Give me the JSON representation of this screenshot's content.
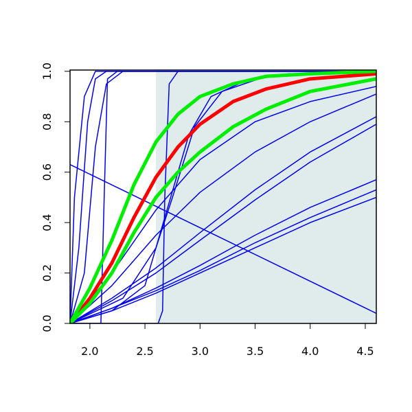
{
  "chart_data": {
    "type": "line",
    "xlim": [
      1.82,
      4.6
    ],
    "ylim": [
      0,
      1.005
    ],
    "xticks": [
      {
        "value": 2,
        "label": "2.0"
      },
      2.5,
      {
        "value": 3,
        "label": "3.0"
      },
      3.5,
      {
        "value": 4,
        "label": "4.0"
      },
      4.5
    ],
    "yticks": [
      {
        "value": 0,
        "label": "0.0"
      },
      0.2,
      0.4,
      0.6,
      0.8,
      {
        "value": 1,
        "label": "1.0"
      }
    ],
    "bands": [
      {
        "x": [
          2.6,
          4.6
        ],
        "color": "#e0ecec"
      }
    ],
    "series": [
      {
        "color": "#0000ee",
        "width": 1.5,
        "x": [
          1.82,
          1.86,
          1.95,
          2.05,
          4.6
        ],
        "values": [
          0,
          0.5,
          0.9,
          1,
          1
        ]
      },
      {
        "color": "#0000ee",
        "width": 1.5,
        "x": [
          1.82,
          1.9,
          1.98,
          2.05,
          2.15,
          4.6
        ],
        "values": [
          0,
          0.3,
          0.8,
          0.97,
          1,
          1
        ]
      },
      {
        "color": "#0000ee",
        "width": 1.5,
        "x": [
          1.82,
          1.95,
          2.05,
          2.15,
          2.3,
          4.6
        ],
        "values": [
          0,
          0.2,
          0.7,
          0.95,
          1,
          1
        ]
      },
      {
        "color": "#0000ee",
        "width": 1.5,
        "x": [
          1.82,
          2.1,
          2.13,
          2.16,
          2.25,
          4.6
        ],
        "values": [
          0,
          0,
          0.5,
          0.97,
          1,
          1
        ]
      },
      {
        "color": "#0000ee",
        "width": 1.5,
        "x": [
          1.82,
          2.62,
          2.66,
          2.68,
          2.72,
          2.8,
          4.6
        ],
        "values": [
          0,
          0,
          0.05,
          0.5,
          0.95,
          1,
          1
        ]
      },
      {
        "color": "#0000ee",
        "width": 1.5,
        "x": [
          1.82,
          2.2,
          2.5,
          2.7,
          2.9,
          3.1,
          3.4,
          3.8,
          4.6
        ],
        "values": [
          0,
          0.05,
          0.15,
          0.45,
          0.75,
          0.9,
          0.96,
          0.99,
          1
        ]
      },
      {
        "color": "#0000ee",
        "width": 1.5,
        "x": [
          1.82,
          2.3,
          2.6,
          2.75,
          2.95,
          3.2,
          3.6,
          4.6
        ],
        "values": [
          0,
          0.1,
          0.3,
          0.5,
          0.78,
          0.92,
          0.98,
          1
        ]
      },
      {
        "color": "#0000ee",
        "width": 1.5,
        "x": [
          1.82,
          2.2,
          2.6,
          3.0,
          3.5,
          4.0,
          4.6
        ],
        "values": [
          0,
          0.2,
          0.45,
          0.65,
          0.8,
          0.88,
          0.94
        ]
      },
      {
        "color": "#0000ee",
        "width": 1.5,
        "x": [
          1.82,
          2.2,
          2.6,
          3.0,
          3.5,
          4.0,
          4.6
        ],
        "values": [
          0,
          0.15,
          0.35,
          0.52,
          0.68,
          0.8,
          0.91
        ]
      },
      {
        "color": "#0000ee",
        "width": 1.5,
        "x": [
          1.82,
          2.2,
          2.6,
          3.0,
          3.5,
          4.0,
          4.6
        ],
        "values": [
          0,
          0.1,
          0.22,
          0.36,
          0.53,
          0.68,
          0.82
        ]
      },
      {
        "color": "#0000ee",
        "width": 1.5,
        "x": [
          1.82,
          2.2,
          2.6,
          3.0,
          3.5,
          4.0,
          4.6
        ],
        "values": [
          0,
          0.09,
          0.2,
          0.33,
          0.49,
          0.64,
          0.79
        ]
      },
      {
        "color": "#0000ee",
        "width": 1.5,
        "x": [
          1.82,
          2.2,
          2.6,
          3.0,
          3.5,
          4.0,
          4.6
        ],
        "values": [
          0,
          0.06,
          0.14,
          0.23,
          0.35,
          0.46,
          0.57
        ]
      },
      {
        "color": "#0000ee",
        "width": 1.5,
        "x": [
          1.82,
          2.2,
          2.6,
          3.0,
          3.5,
          4.0,
          4.6
        ],
        "values": [
          0,
          0.05,
          0.12,
          0.2,
          0.3,
          0.4,
          0.5
        ]
      },
      {
        "color": "#0000ee",
        "width": 1.5,
        "x": [
          1.82,
          2.2,
          2.6,
          3.0,
          3.5,
          4.0,
          4.6
        ],
        "values": [
          0,
          0.06,
          0.13,
          0.21,
          0.32,
          0.42,
          0.53
        ]
      },
      {
        "color": "#0000ee",
        "width": 1.5,
        "x": [
          1.82,
          4.6
        ],
        "values": [
          0.63,
          0.04
        ]
      },
      {
        "color": "#ff0000",
        "width": 5,
        "x": [
          1.82,
          2.0,
          2.2,
          2.4,
          2.6,
          2.8,
          3.0,
          3.3,
          3.6,
          4.0,
          4.6
        ],
        "values": [
          0,
          0.1,
          0.24,
          0.42,
          0.58,
          0.7,
          0.79,
          0.88,
          0.93,
          0.97,
          0.99
        ]
      },
      {
        "color": "#00ee00",
        "width": 5,
        "x": [
          1.82,
          2.0,
          2.2,
          2.4,
          2.6,
          2.8,
          3.0,
          3.3,
          3.6,
          4.0,
          4.6
        ],
        "values": [
          0,
          0.14,
          0.33,
          0.55,
          0.72,
          0.83,
          0.9,
          0.95,
          0.98,
          0.99,
          1.0
        ]
      },
      {
        "color": "#00ee00",
        "width": 5,
        "x": [
          1.82,
          2.0,
          2.2,
          2.4,
          2.6,
          2.8,
          3.0,
          3.3,
          3.6,
          4.0,
          4.6
        ],
        "values": [
          0,
          0.08,
          0.2,
          0.36,
          0.5,
          0.6,
          0.68,
          0.78,
          0.85,
          0.92,
          0.97
        ]
      }
    ]
  }
}
